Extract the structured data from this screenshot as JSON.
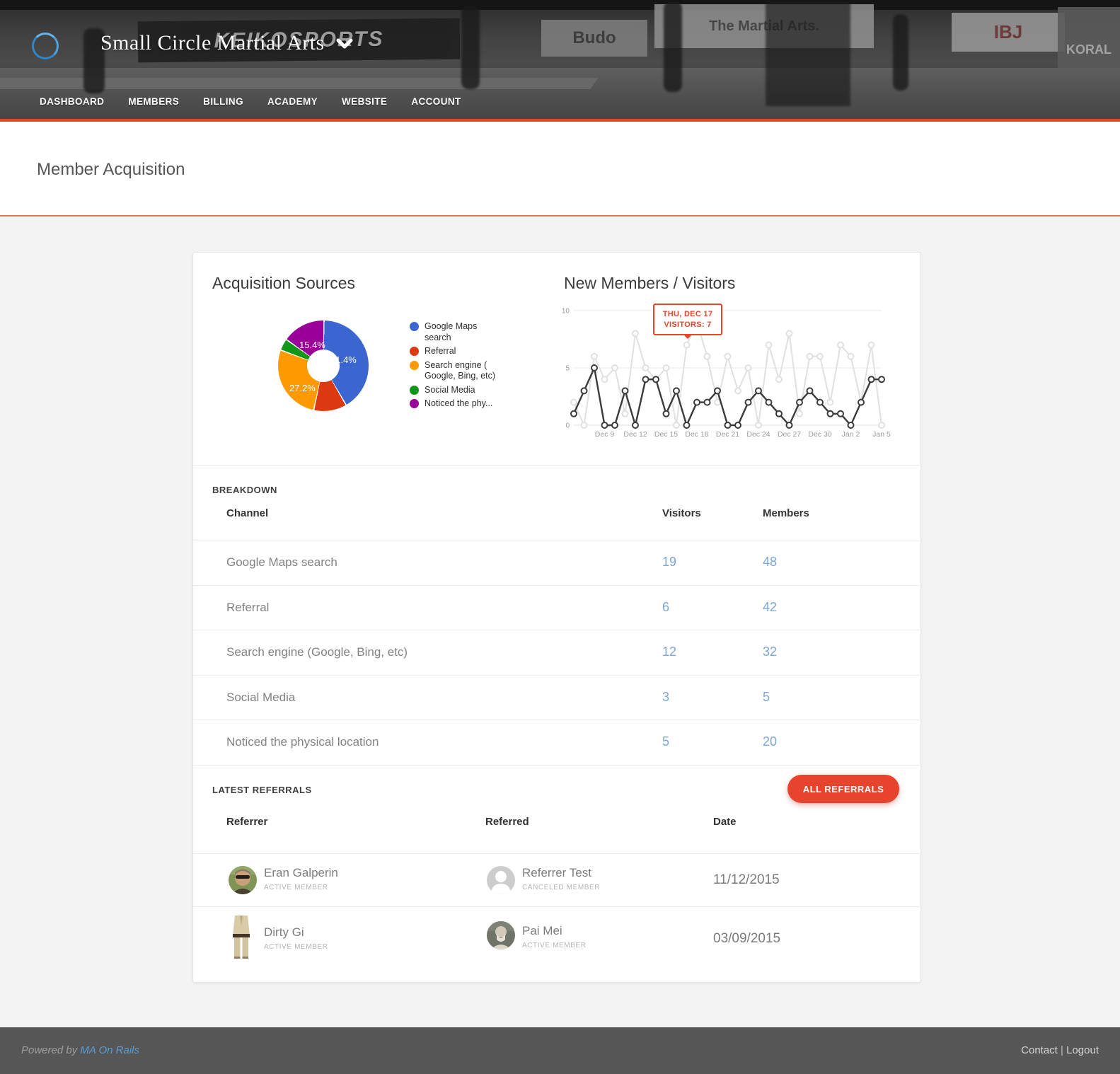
{
  "header": {
    "org_name": "Small Circle Martial Arts",
    "nav_items": [
      "DASHBOARD",
      "MEMBERS",
      "BILLING",
      "ACADEMY",
      "WEBSITE",
      "ACCOUNT"
    ],
    "photo_texts": {
      "banner_keiko": "KEIKOSPORTS",
      "banner_budo": "Budo",
      "banner_martial": "The Martial Arts.",
      "banner_ibj": "IBJ",
      "banner_koral": "KORAL"
    }
  },
  "page": {
    "title": "Member Acquisition"
  },
  "chart_data": [
    {
      "type": "pie",
      "title": "Acquisition Sources",
      "labels": [
        "Google Maps search",
        "Referral",
        "Search engine ( Google, Bing, etc)",
        "Social Media",
        "Noticed the phy..."
      ],
      "values": [
        41.4,
        11.8,
        27.2,
        4.2,
        15.4
      ],
      "colors": [
        "#3B66D0",
        "#DC3912",
        "#FF9900",
        "#109618",
        "#990099"
      ],
      "hole_ratio": 0.36,
      "percent_labels": {
        "blue": "41.4%",
        "orange": "27.2%",
        "purple": "15.4%"
      },
      "legend_position": "right"
    },
    {
      "type": "line",
      "title": "New Members / Visitors",
      "x_range": [
        "Dec 6",
        "Jan 5"
      ],
      "tick_labels": [
        "Dec 9",
        "Dec 12",
        "Dec 15",
        "Dec 18",
        "Dec 21",
        "Dec 24",
        "Dec 27",
        "Dec 30",
        "Jan 2",
        "Jan 5"
      ],
      "tick_indices": [
        3,
        6,
        9,
        12,
        15,
        18,
        21,
        24,
        27,
        30
      ],
      "y_ticks": [
        0,
        5,
        10
      ],
      "y_tick_labels": [
        "0",
        "5",
        "10"
      ],
      "ylim": [
        0,
        10
      ],
      "grid": "horizontal-only",
      "series": [
        {
          "name": "Visitors",
          "color": "#e0e0e0",
          "values": [
            2,
            0,
            6,
            4,
            5,
            1,
            8,
            5,
            4,
            5,
            0,
            7,
            9,
            6,
            2,
            6,
            3,
            5,
            0,
            7,
            4,
            8,
            1,
            6,
            6,
            2,
            7,
            6,
            2,
            7,
            0
          ]
        },
        {
          "name": "Members",
          "color": "#3b3b3b",
          "values": [
            1,
            3,
            5,
            0,
            0,
            3,
            0,
            4,
            4,
            1,
            3,
            0,
            2,
            2,
            3,
            0,
            0,
            2,
            3,
            2,
            1,
            0,
            2,
            3,
            2,
            1,
            1,
            0,
            2,
            4,
            4
          ]
        }
      ],
      "tooltip": {
        "line1": "THU, DEC 17",
        "line2": "VISITORS: 7",
        "point_index": 11
      }
    }
  ],
  "breakdown": {
    "section_label": "BREAKDOWN",
    "columns": [
      "Channel",
      "Visitors",
      "Members"
    ],
    "rows": [
      {
        "channel": "Google Maps search",
        "visitors": "19",
        "members": "48"
      },
      {
        "channel": "Referral",
        "visitors": "6",
        "members": "42"
      },
      {
        "channel": "Search engine (Google, Bing, etc)",
        "visitors": "12",
        "members": "32"
      },
      {
        "channel": "Social Media",
        "visitors": "3",
        "members": "5"
      },
      {
        "channel": "Noticed the physical location",
        "visitors": "5",
        "members": "20"
      }
    ]
  },
  "referrals": {
    "section_label": "LATEST REFERRALS",
    "button_label": "ALL REFERRALS",
    "columns": [
      "Referrer",
      "Referred",
      "Date"
    ],
    "rows": [
      {
        "referrer": {
          "name": "Eran Galperin",
          "status": "ACTIVE MEMBER"
        },
        "referred": {
          "name": "Referrer Test",
          "status": "CANCELED MEMBER"
        },
        "date": "11/12/2015"
      },
      {
        "referrer": {
          "name": "Dirty Gi",
          "status": "ACTIVE MEMBER"
        },
        "referred": {
          "name": "Pai Mei",
          "status": "ACTIVE MEMBER"
        },
        "date": "03/09/2015"
      }
    ]
  },
  "footer": {
    "powered_by": "Powered by",
    "brand_link": "MA On Rails",
    "contact": "Contact",
    "separator": "|",
    "logout": "Logout"
  },
  "colors": {
    "accent_red": "#e8432c",
    "link_blue": "#7ba6d8",
    "footer_link": "#5d9cd3"
  }
}
